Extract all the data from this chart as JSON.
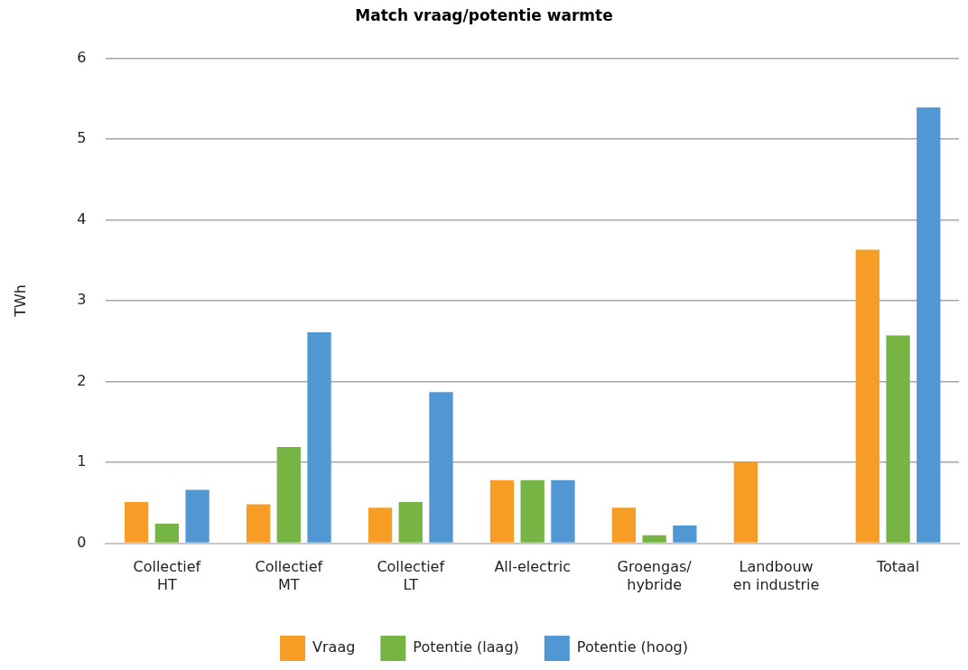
{
  "chart_data": {
    "type": "bar",
    "title": "Match vraag/potentie warmte",
    "ylabel": "TWh",
    "categories": [
      "Collectief\nHT",
      "Collectief\nMT",
      "Collectief\nLT",
      "All-electric",
      "Groengas/\nhybride",
      "Landbouw\nen industrie",
      "Totaal"
    ],
    "series": [
      {
        "name": "Vraag",
        "color": "#f79d25",
        "values": [
          0.51,
          0.48,
          0.44,
          0.78,
          0.44,
          1.0,
          3.63
        ]
      },
      {
        "name": "Potentie (laag)",
        "color": "#76b543",
        "values": [
          0.24,
          1.19,
          0.51,
          0.78,
          0.1,
          null,
          2.57
        ]
      },
      {
        "name": "Potentie (hoog)",
        "color": "#5197d3",
        "values": [
          0.66,
          2.61,
          1.87,
          0.78,
          0.22,
          null,
          5.39
        ]
      }
    ],
    "ylim": [
      0,
      6
    ],
    "yticks": [
      0,
      1,
      2,
      3,
      4,
      5,
      6
    ],
    "grid": "y",
    "legend": "bottom"
  }
}
